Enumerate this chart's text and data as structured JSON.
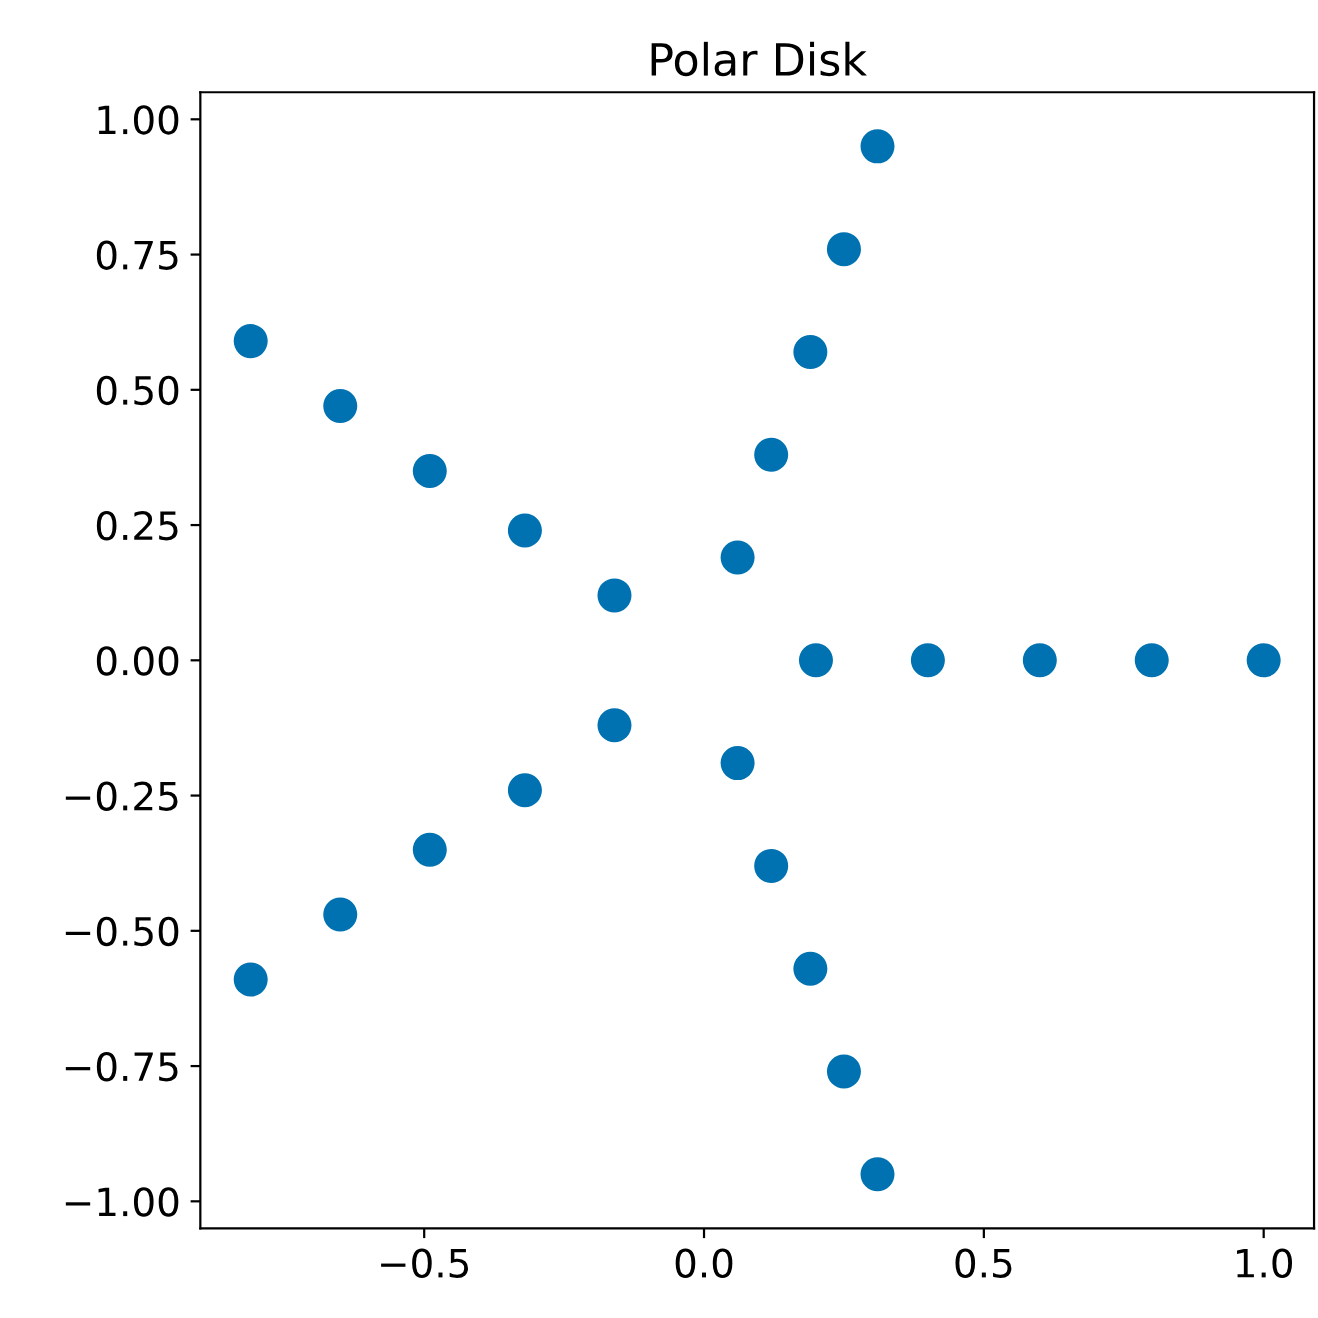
{
  "chart_data": {
    "type": "scatter",
    "title": "Polar Disk",
    "x": [
      0.2,
      0.4,
      0.6,
      0.8,
      1.0,
      0.06,
      0.12,
      0.19,
      0.25,
      0.31,
      -0.16,
      -0.32,
      -0.49,
      -0.65,
      -0.81,
      -0.16,
      -0.32,
      -0.49,
      -0.65,
      -0.81,
      0.06,
      0.12,
      0.19,
      0.25,
      0.31
    ],
    "values": [
      0.0,
      0.0,
      0.0,
      0.0,
      0.0,
      0.19,
      0.38,
      0.57,
      0.76,
      0.95,
      0.12,
      0.24,
      0.35,
      0.47,
      0.59,
      -0.12,
      -0.24,
      -0.35,
      -0.47,
      -0.59,
      -0.19,
      -0.38,
      -0.57,
      -0.76,
      -0.95
    ],
    "color": "#0072b2",
    "marker": "circle",
    "xlim": [
      -0.9,
      1.09
    ],
    "ylim": [
      -1.05,
      1.05
    ],
    "xticks": [
      {
        "value": -0.5,
        "label": "−0.5"
      },
      {
        "value": 0.0,
        "label": "0.0"
      },
      0.5,
      {
        "value": 1.0,
        "label": "1.0"
      }
    ],
    "yticks": [
      {
        "value": -1.0,
        "label": "−1.00"
      },
      {
        "value": -0.75,
        "label": "−0.75"
      },
      {
        "value": -0.5,
        "label": "−0.50"
      },
      {
        "value": -0.25,
        "label": "−0.25"
      },
      {
        "value": 0.0,
        "label": "0.00"
      },
      {
        "value": 0.25,
        "label": "0.25"
      },
      {
        "value": 0.5,
        "label": "0.50"
      },
      {
        "value": 0.75,
        "label": "0.75"
      },
      {
        "value": 1.0,
        "label": "1.00"
      }
    ],
    "grid": false
  }
}
